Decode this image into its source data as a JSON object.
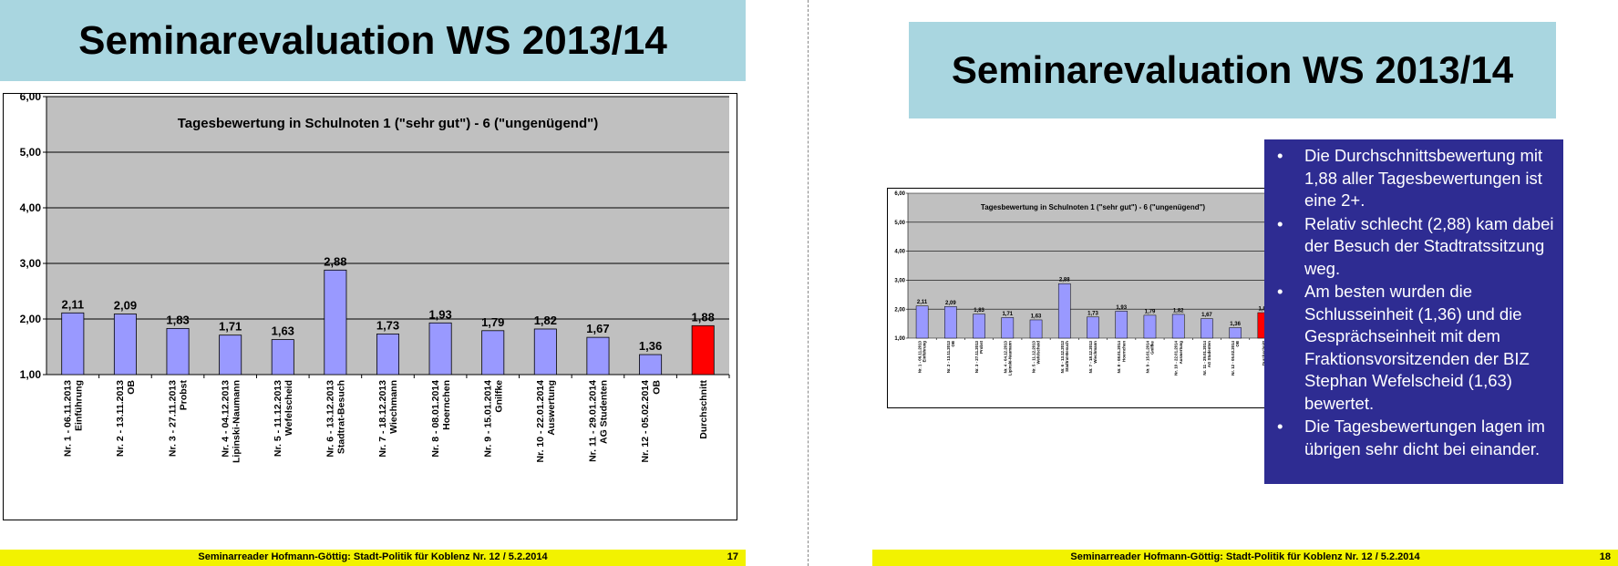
{
  "slides": [
    {
      "title": "Seminarevaluation WS 2013/14",
      "footer": "Seminarreader Hofmann-Göttig: Stadt-Politik für Koblenz Nr. 12 / 5.2.2014",
      "page_number": "17"
    },
    {
      "title": "Seminarevaluation WS 2013/14",
      "footer": "Seminarreader Hofmann-Göttig: Stadt-Politik für Koblenz Nr. 12 / 5.2.2014",
      "page_number": "18",
      "bullets": [
        "Die Durchschnittsbewertung mit 1,88 aller Tagesbewertungen ist eine 2+.",
        "Relativ schlecht (2,88) kam dabei der Besuch der Stadtratssitzung weg.",
        "Am besten wurden die Schlusseinheit (1,36) und die Gesprächseinheit mit dem Fraktionsvorsitzenden der BIZ Stephan Wefelscheid (1,63) bewertet.",
        "Die Tagesbewertungen lagen im übrigen sehr dicht bei einander."
      ]
    }
  ],
  "chart_data": {
    "type": "bar",
    "title": "Tagesbewertung in Schulnoten 1 (\"sehr gut\") - 6 (\"ungenügend\")",
    "categories": [
      [
        "Nr. 1 - 06.11.2013",
        "Einführung"
      ],
      [
        "Nr. 2 - 13.11.2013",
        "OB"
      ],
      [
        "Nr. 3 - 27.11.2013",
        "Probst"
      ],
      [
        "Nr. 4 - 04.12.2013",
        "Lipinski-Naumann"
      ],
      [
        "Nr. 5 - 11.12.2013",
        "Wefelscheid"
      ],
      [
        "Nr. 6 - 13.12.2013",
        "Stadtrat-Besuch"
      ],
      [
        "Nr. 7 - 18.12.2013",
        "Wiechmann"
      ],
      [
        "Nr. 8 - 08.01.2014",
        "Hoernchen"
      ],
      [
        "Nr. 9 - 15.01.2014",
        "Gnilfke"
      ],
      [
        "Nr. 10 - 22.01.2014",
        "Auswertung"
      ],
      [
        "Nr. 11 - 29.01.2014",
        "AG Studenten"
      ],
      [
        "Nr. 12 - 05.02.2014",
        "OB"
      ],
      [
        "Durchschnitt"
      ]
    ],
    "values": [
      2.11,
      2.09,
      1.83,
      1.71,
      1.63,
      2.88,
      1.73,
      1.93,
      1.79,
      1.82,
      1.67,
      1.36,
      1.88
    ],
    "value_labels": [
      "2,11",
      "2,09",
      "1,83",
      "1,71",
      "1,63",
      "2,88",
      "1,73",
      "1,93",
      "1,79",
      "1,82",
      "1,67",
      "1,36",
      "1,88"
    ],
    "ylim": [
      1,
      6
    ],
    "yticks": [
      1,
      2,
      3,
      4,
      5,
      6
    ],
    "ytick_labels": [
      "1,00",
      "2,00",
      "3,00",
      "4,00",
      "5,00",
      "6,00"
    ],
    "grid": true,
    "colors": {
      "bar": "#9999ff",
      "highlight": "#ff0000",
      "plot_bg": "#c0c0c0"
    }
  }
}
